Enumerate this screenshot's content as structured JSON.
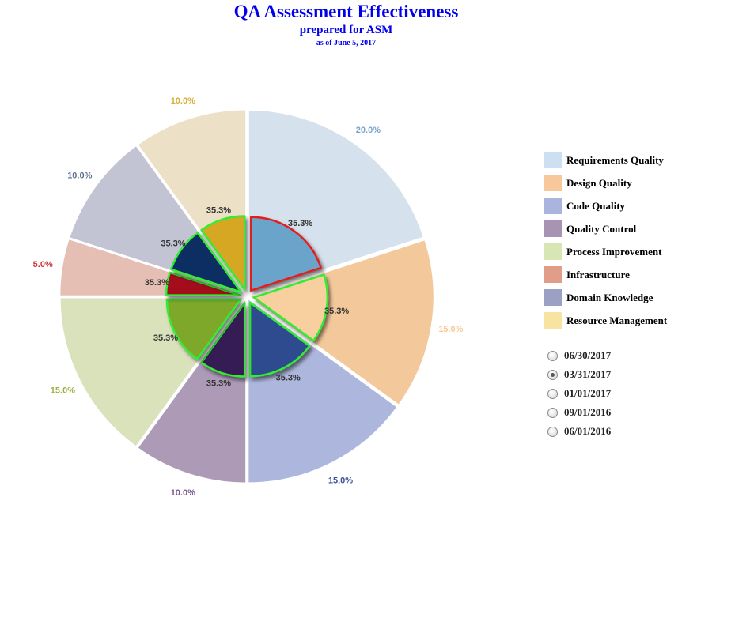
{
  "header": {
    "title": "QA Assessment Effectiveness",
    "subtitle": "prepared for ASM",
    "date": "as of June 5, 2017",
    "color": "#0000ee"
  },
  "chart_data": {
    "type": "pie",
    "categories": [
      "Requirements Quality",
      "Design Quality",
      "Code Quality",
      "Quality Control",
      "Process Improvement",
      "Infrastructure",
      "Domain Knowledge",
      "Resource Management"
    ],
    "series": [
      {
        "values": [
          20.0,
          15.0,
          15.0,
          10.0,
          15.0,
          5.0,
          10.0,
          10.0
        ],
        "labels": [
          "20.0%",
          "15.0%",
          "15.0%",
          "10.0%",
          "15.0%",
          "5.0%",
          "10.0%",
          "10.0%"
        ],
        "colors": [
          "#d5e1ec",
          "#f3c99b",
          "#adb6dc",
          "#ac9ab7",
          "#dae2bb",
          "#e5bfb4",
          "#c2c4d4",
          "#ece1c7"
        ],
        "label_colors": [
          "#7aa4cd",
          "#f8c996",
          "#3a5198",
          "#7c5c8c",
          "#9bb03d",
          "#cc3740",
          "#5b6f8e",
          "#d8ae38"
        ]
      },
      {
        "values": [
          35.3,
          35.3,
          35.3,
          35.3,
          35.3,
          35.3,
          35.3,
          35.3
        ],
        "labels": [
          "35.3%",
          "35.3%",
          "35.3%",
          "35.3%",
          "35.3%",
          "35.3%",
          "35.3%",
          "35.3%"
        ],
        "colors": [
          "#6aa4cb",
          "#f8cf9e",
          "#2e4c8f",
          "#361a55",
          "#7da82a",
          "#a30f1d",
          "#0f2d62",
          "#d5a720"
        ],
        "outline_colors": [
          "#e51c1c",
          "#33ee33",
          "#33ee33",
          "#33ee33",
          "#33ee33",
          "#33ee33",
          "#33ee33",
          "#33ee33"
        ]
      }
    ],
    "legend": "right"
  },
  "legend": {
    "items": [
      {
        "label": "Requirements Quality",
        "color": "#cde0f2"
      },
      {
        "label": "Design Quality",
        "color": "#f6c89a"
      },
      {
        "label": "Code Quality",
        "color": "#aab4dc"
      },
      {
        "label": "Quality Control",
        "color": "#a893b2"
      },
      {
        "label": "Process Improvement",
        "color": "#d8e6b3"
      },
      {
        "label": "Infrastructure",
        "color": "#e09d88"
      },
      {
        "label": "Domain Knowledge",
        "color": "#9aa1c5"
      },
      {
        "label": "Resource Management",
        "color": "#f8e3a0"
      }
    ]
  },
  "dates": {
    "selected": "03/31/2017",
    "options": [
      "06/30/2017",
      "03/31/2017",
      "01/01/2017",
      "09/01/2016",
      "06/01/2016"
    ]
  }
}
